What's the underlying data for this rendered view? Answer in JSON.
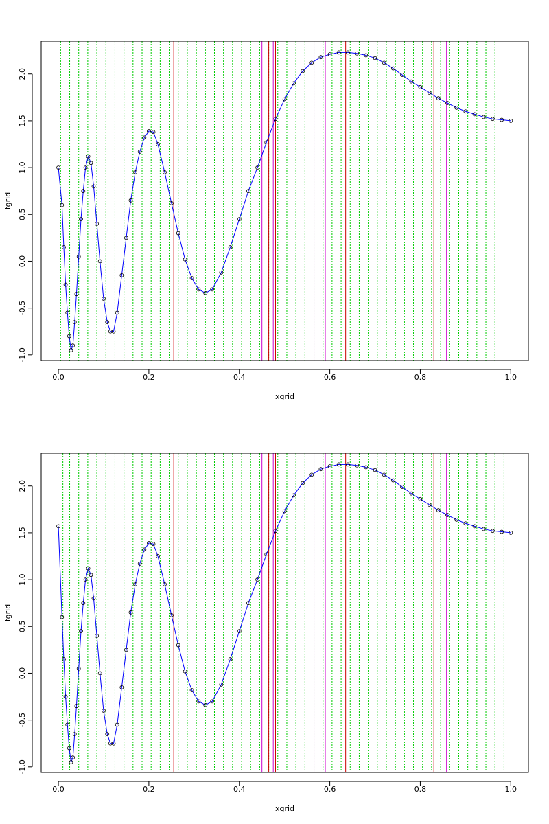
{
  "chart_data": [
    {
      "type": "line",
      "xlabel": "xgrid",
      "ylabel": "fgrid",
      "xlim": [
        -0.038,
        1.039
      ],
      "ylim": [
        -1.06,
        2.35
      ],
      "xticks": [
        {
          "value": 0,
          "label": "0.0"
        },
        0.2,
        0.4,
        0.6,
        0.8,
        {
          "value": 1,
          "label": "1.0"
        }
      ],
      "yticks": [
        {
          "value": -1,
          "label": "-1.0"
        },
        -0.5,
        {
          "value": 0,
          "label": "0.0"
        },
        0.5,
        {
          "value": 1,
          "label": "1.0"
        },
        1.5,
        {
          "value": 2,
          "label": "2.0"
        }
      ],
      "line_color": "#0000ff",
      "marker_color": "#000000",
      "x": [
        0,
        0.008,
        0.012,
        0.016,
        0.02,
        0.024,
        0.028,
        0.032,
        0.036,
        0.04,
        0.045,
        0.05,
        0.055,
        0.06,
        0.066,
        0.072,
        0.078,
        0.085,
        0.092,
        0.1,
        0.108,
        0.115,
        0.122,
        0.13,
        0.14,
        0.15,
        0.16,
        0.17,
        0.18,
        0.19,
        0.2,
        0.21,
        0.22,
        0.235,
        0.25,
        0.265,
        0.28,
        0.295,
        0.31,
        0.325,
        0.34,
        0.36,
        0.38,
        0.4,
        0.42,
        0.44,
        0.46,
        0.48,
        0.5,
        0.52,
        0.54,
        0.56,
        0.58,
        0.6,
        0.62,
        0.64,
        0.66,
        0.68,
        0.7,
        0.72,
        0.74,
        0.76,
        0.78,
        0.8,
        0.82,
        0.84,
        0.86,
        0.88,
        0.9,
        0.92,
        0.94,
        0.96,
        0.98,
        1
      ],
      "values": [
        1,
        0.6,
        0.15,
        -0.25,
        -0.55,
        -0.8,
        -0.95,
        -0.9,
        -0.65,
        -0.35,
        0.05,
        0.45,
        0.75,
        1,
        1.12,
        1.05,
        0.8,
        0.4,
        0,
        -0.4,
        -0.65,
        -0.75,
        -0.75,
        -0.55,
        -0.15,
        0.25,
        0.65,
        0.95,
        1.17,
        1.32,
        1.39,
        1.38,
        1.25,
        0.95,
        0.62,
        0.3,
        0.02,
        -0.18,
        -0.3,
        -0.34,
        -0.3,
        -0.12,
        0.15,
        0.45,
        0.75,
        1,
        1.27,
        1.52,
        1.73,
        1.9,
        2.03,
        2.12,
        2.18,
        2.21,
        2.23,
        2.23,
        2.22,
        2.2,
        2.17,
        2.12,
        2.06,
        1.99,
        1.92,
        1.86,
        1.8,
        1.74,
        1.69,
        1.64,
        1.6,
        1.57,
        1.54,
        1.52,
        1.51,
        1.5
      ],
      "vlines": [
        {
          "style": "dotted",
          "color": "#00cc00",
          "x": [
            0.005,
            0.025,
            0.045,
            0.065,
            0.085,
            0.105,
            0.125,
            0.145,
            0.165,
            0.185,
            0.205,
            0.225,
            0.245,
            0.265,
            0.285,
            0.305,
            0.325,
            0.345,
            0.365,
            0.385,
            0.405,
            0.425,
            0.445,
            0.465,
            0.485,
            0.505,
            0.525,
            0.545,
            0.565,
            0.585,
            0.605,
            0.625,
            0.645,
            0.665,
            0.685,
            0.705,
            0.725,
            0.745,
            0.765,
            0.785,
            0.805,
            0.825,
            0.845,
            0.865,
            0.885,
            0.905,
            0.925,
            0.945,
            0.965
          ]
        },
        {
          "style": "solid",
          "color": "#cc0000",
          "x": [
            0.255,
            0.465,
            0.48,
            0.635,
            0.83
          ]
        },
        {
          "style": "solid",
          "color": "#cc00cc",
          "x": [
            0.45,
            0.475,
            0.565,
            0.59,
            0.858
          ]
        }
      ]
    },
    {
      "type": "line",
      "xlabel": "xgrid",
      "ylabel": "fgrid",
      "xlim": [
        -0.038,
        1.039
      ],
      "ylim": [
        -1.06,
        2.35
      ],
      "xticks": [
        {
          "value": 0,
          "label": "0.0"
        },
        0.2,
        0.4,
        0.6,
        0.8,
        {
          "value": 1,
          "label": "1.0"
        }
      ],
      "yticks": [
        {
          "value": -1,
          "label": "-1.0"
        },
        -0.5,
        {
          "value": 0,
          "label": "0.0"
        },
        0.5,
        {
          "value": 1,
          "label": "1.0"
        },
        1.5,
        {
          "value": 2,
          "label": "2.0"
        }
      ],
      "line_color": "#0000ff",
      "marker_color": "#000000",
      "x": [
        0,
        0.008,
        0.012,
        0.016,
        0.02,
        0.024,
        0.028,
        0.032,
        0.036,
        0.04,
        0.045,
        0.05,
        0.055,
        0.06,
        0.066,
        0.072,
        0.078,
        0.085,
        0.092,
        0.1,
        0.108,
        0.115,
        0.122,
        0.13,
        0.14,
        0.15,
        0.16,
        0.17,
        0.18,
        0.19,
        0.2,
        0.21,
        0.22,
        0.235,
        0.25,
        0.265,
        0.28,
        0.295,
        0.31,
        0.325,
        0.34,
        0.36,
        0.38,
        0.4,
        0.42,
        0.44,
        0.46,
        0.48,
        0.5,
        0.52,
        0.54,
        0.56,
        0.58,
        0.6,
        0.62,
        0.64,
        0.66,
        0.68,
        0.7,
        0.72,
        0.74,
        0.76,
        0.78,
        0.8,
        0.82,
        0.84,
        0.86,
        0.88,
        0.9,
        0.92,
        0.94,
        0.96,
        0.98,
        1
      ],
      "values": [
        1.57,
        0.6,
        0.15,
        -0.25,
        -0.55,
        -0.8,
        -0.95,
        -0.9,
        -0.65,
        -0.35,
        0.05,
        0.45,
        0.75,
        1,
        1.12,
        1.05,
        0.8,
        0.4,
        0,
        -0.4,
        -0.65,
        -0.75,
        -0.75,
        -0.55,
        -0.15,
        0.25,
        0.65,
        0.95,
        1.17,
        1.32,
        1.39,
        1.38,
        1.25,
        0.95,
        0.62,
        0.3,
        0.02,
        -0.18,
        -0.3,
        -0.34,
        -0.3,
        -0.12,
        0.15,
        0.45,
        0.75,
        1,
        1.27,
        1.52,
        1.73,
        1.9,
        2.03,
        2.12,
        2.18,
        2.21,
        2.23,
        2.23,
        2.22,
        2.2,
        2.17,
        2.12,
        2.06,
        1.99,
        1.92,
        1.86,
        1.8,
        1.74,
        1.69,
        1.64,
        1.6,
        1.57,
        1.54,
        1.52,
        1.51,
        1.5
      ],
      "vlines": [
        {
          "style": "dotted",
          "color": "#00cc00",
          "x": [
            0.01,
            0.025,
            0.045,
            0.065,
            0.085,
            0.105,
            0.125,
            0.145,
            0.165,
            0.185,
            0.205,
            0.225,
            0.245,
            0.265,
            0.285,
            0.305,
            0.325,
            0.345,
            0.365,
            0.385,
            0.405,
            0.425,
            0.445,
            0.465,
            0.485,
            0.505,
            0.525,
            0.545,
            0.565,
            0.585,
            0.605,
            0.625,
            0.645,
            0.665,
            0.685,
            0.705,
            0.725,
            0.745,
            0.765,
            0.785,
            0.805,
            0.825,
            0.845,
            0.865,
            0.885,
            0.905,
            0.925,
            0.945,
            0.965,
            0.985
          ]
        },
        {
          "style": "solid",
          "color": "#cc0000",
          "x": [
            0.255,
            0.465,
            0.48,
            0.635,
            0.83
          ]
        },
        {
          "style": "solid",
          "color": "#cc00cc",
          "x": [
            0.45,
            0.475,
            0.565,
            0.59,
            0.858
          ]
        }
      ]
    }
  ]
}
